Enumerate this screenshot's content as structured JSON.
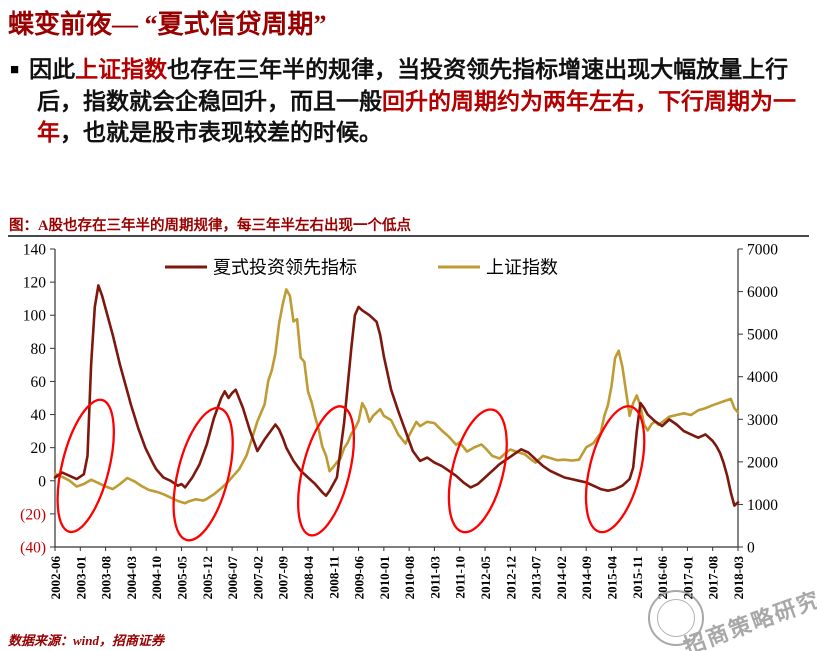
{
  "header": {
    "title": "蝶变前夜— “夏式信贷周期”"
  },
  "bullet": {
    "marker": "■",
    "segments": [
      {
        "text": "因此",
        "red": false
      },
      {
        "text": "上证指数",
        "red": true
      },
      {
        "text": "也存在三年半的规律，当投资领先指标增速出现大幅放量上行后，指数就会企稳回升，而且一般",
        "red": false
      },
      {
        "text": "回升的周期约为两年左右，下行周期为一年",
        "red": true
      },
      {
        "text": "，也就是股市表现较差的时候。",
        "red": false
      }
    ]
  },
  "figure": {
    "caption": "图：A股也存在三年半的周期规律，每三年半左右出现一个低点"
  },
  "footer": {
    "source": "数据来源：wind，招商证券"
  },
  "watermark": {
    "text": "招商策略研究"
  },
  "chart_data": {
    "type": "line",
    "title": "图：A股也存在三年半的周期规律，每三年半左右出现一个低点",
    "xlabel": "",
    "ylabel": "",
    "legend_position": "top",
    "grid": false,
    "x_start": "2002-06",
    "x_end": "2018-03",
    "total_months": 189,
    "months_per_tick": 7,
    "x_tick_labels": [
      "2002-06",
      "2003-01",
      "2003-08",
      "2004-03",
      "2004-10",
      "2005-05",
      "2005-12",
      "2006-07",
      "2007-02",
      "2007-09",
      "2008-04",
      "2008-11",
      "2009-06",
      "2010-01",
      "2010-08",
      "2011-03",
      "2011-10",
      "2012-05",
      "2012-12",
      "2013-07",
      "2014-02",
      "2014-09",
      "2015-04",
      "2015-11",
      "2016-06",
      "2017-01",
      "2017-08",
      "2018-03"
    ],
    "left_axis": {
      "min": -40,
      "max": 140,
      "ticks": [
        "140",
        "120",
        "100",
        "80",
        "60",
        "40",
        "20",
        "0",
        "(20)",
        "(40)"
      ]
    },
    "right_axis": {
      "min": 0,
      "max": 7000,
      "ticks": [
        "7000",
        "6000",
        "5000",
        "4000",
        "3000",
        "2000",
        "1000",
        "0"
      ]
    },
    "colors": {
      "negative_tick": "#c00000",
      "axis": "#333333"
    },
    "series": [
      {
        "name": "夏式投资领先指标",
        "axis": "left",
        "color": "#7e180e",
        "points": [
          [
            0,
            2
          ],
          [
            2,
            5
          ],
          [
            4,
            3
          ],
          [
            6,
            1
          ],
          [
            8,
            4
          ],
          [
            9,
            15
          ],
          [
            10,
            70
          ],
          [
            11,
            105
          ],
          [
            12,
            118
          ],
          [
            13,
            112
          ],
          [
            14,
            104
          ],
          [
            16,
            88
          ],
          [
            18,
            70
          ],
          [
            20,
            54
          ],
          [
            21,
            46
          ],
          [
            23,
            32
          ],
          [
            25,
            20
          ],
          [
            27,
            11
          ],
          [
            28,
            7
          ],
          [
            30,
            2
          ],
          [
            32,
            0
          ],
          [
            34,
            -3
          ],
          [
            35,
            -2
          ],
          [
            36,
            -4
          ],
          [
            38,
            2
          ],
          [
            40,
            10
          ],
          [
            42,
            22
          ],
          [
            44,
            38
          ],
          [
            46,
            50
          ],
          [
            47,
            54
          ],
          [
            48,
            50
          ],
          [
            49,
            53
          ],
          [
            50,
            55
          ],
          [
            52,
            44
          ],
          [
            54,
            30
          ],
          [
            56,
            18
          ],
          [
            58,
            25
          ],
          [
            60,
            31
          ],
          [
            61,
            34
          ],
          [
            62,
            31
          ],
          [
            63,
            26
          ],
          [
            64,
            20
          ],
          [
            66,
            12
          ],
          [
            68,
            6
          ],
          [
            70,
            2
          ],
          [
            72,
            -2
          ],
          [
            74,
            -7
          ],
          [
            75,
            -9
          ],
          [
            76,
            -6
          ],
          [
            78,
            2
          ],
          [
            80,
            35
          ],
          [
            82,
            80
          ],
          [
            83,
            100
          ],
          [
            84,
            105
          ],
          [
            85,
            103
          ],
          [
            87,
            100
          ],
          [
            89,
            96
          ],
          [
            90,
            88
          ],
          [
            91,
            75
          ],
          [
            93,
            55
          ],
          [
            95,
            42
          ],
          [
            97,
            30
          ],
          [
            99,
            18
          ],
          [
            101,
            12
          ],
          [
            103,
            14
          ],
          [
            105,
            11
          ],
          [
            107,
            9
          ],
          [
            109,
            6
          ],
          [
            111,
            3
          ],
          [
            113,
            -1
          ],
          [
            115,
            -4
          ],
          [
            117,
            -2
          ],
          [
            119,
            2
          ],
          [
            121,
            6
          ],
          [
            123,
            10
          ],
          [
            125,
            13
          ],
          [
            127,
            16
          ],
          [
            129,
            19
          ],
          [
            131,
            17
          ],
          [
            133,
            13
          ],
          [
            135,
            9
          ],
          [
            137,
            6
          ],
          [
            139,
            4
          ],
          [
            141,
            2
          ],
          [
            143,
            1
          ],
          [
            145,
            0
          ],
          [
            147,
            -1
          ],
          [
            149,
            -3
          ],
          [
            151,
            -5
          ],
          [
            153,
            -6
          ],
          [
            155,
            -5
          ],
          [
            157,
            -3
          ],
          [
            159,
            1
          ],
          [
            160,
            8
          ],
          [
            161,
            30
          ],
          [
            162,
            47
          ],
          [
            163,
            44
          ],
          [
            164,
            40
          ],
          [
            166,
            36
          ],
          [
            168,
            33
          ],
          [
            170,
            37
          ],
          [
            172,
            34
          ],
          [
            174,
            30
          ],
          [
            176,
            28
          ],
          [
            178,
            26
          ],
          [
            180,
            28
          ],
          [
            182,
            24
          ],
          [
            183,
            21
          ],
          [
            184,
            17
          ],
          [
            185,
            11
          ],
          [
            186,
            3
          ],
          [
            187,
            -7
          ],
          [
            188,
            -15
          ],
          [
            189,
            -13
          ]
        ]
      },
      {
        "name": "上证指数",
        "axis": "right",
        "color": "#bf9b33",
        "points": [
          [
            0,
            1720
          ],
          [
            2,
            1650
          ],
          [
            4,
            1560
          ],
          [
            6,
            1420
          ],
          [
            8,
            1480
          ],
          [
            10,
            1580
          ],
          [
            12,
            1500
          ],
          [
            14,
            1420
          ],
          [
            16,
            1360
          ],
          [
            18,
            1480
          ],
          [
            20,
            1620
          ],
          [
            22,
            1540
          ],
          [
            24,
            1430
          ],
          [
            26,
            1340
          ],
          [
            28,
            1300
          ],
          [
            30,
            1240
          ],
          [
            32,
            1160
          ],
          [
            34,
            1080
          ],
          [
            36,
            1030
          ],
          [
            37,
            1070
          ],
          [
            39,
            1120
          ],
          [
            41,
            1090
          ],
          [
            42,
            1130
          ],
          [
            44,
            1240
          ],
          [
            46,
            1380
          ],
          [
            48,
            1540
          ],
          [
            49,
            1640
          ],
          [
            51,
            1830
          ],
          [
            53,
            2150
          ],
          [
            55,
            2680
          ],
          [
            56,
            2950
          ],
          [
            58,
            3350
          ],
          [
            59,
            3900
          ],
          [
            60,
            4150
          ],
          [
            61,
            4550
          ],
          [
            62,
            5250
          ],
          [
            63,
            5700
          ],
          [
            64,
            6050
          ],
          [
            65,
            5900
          ],
          [
            66,
            5300
          ],
          [
            67,
            5350
          ],
          [
            68,
            4450
          ],
          [
            69,
            4350
          ],
          [
            70,
            3650
          ],
          [
            71,
            3400
          ],
          [
            72,
            3050
          ],
          [
            73,
            2750
          ],
          [
            74,
            2350
          ],
          [
            75,
            2150
          ],
          [
            76,
            1780
          ],
          [
            77,
            1880
          ],
          [
            78,
            1990
          ],
          [
            79,
            2080
          ],
          [
            80,
            2320
          ],
          [
            81,
            2450
          ],
          [
            82,
            2660
          ],
          [
            83,
            2780
          ],
          [
            84,
            2960
          ],
          [
            85,
            3380
          ],
          [
            86,
            3230
          ],
          [
            87,
            2940
          ],
          [
            88,
            3080
          ],
          [
            90,
            3240
          ],
          [
            91,
            3080
          ],
          [
            93,
            2980
          ],
          [
            95,
            2640
          ],
          [
            97,
            2430
          ],
          [
            98,
            2620
          ],
          [
            100,
            2940
          ],
          [
            101,
            2840
          ],
          [
            103,
            2940
          ],
          [
            105,
            2910
          ],
          [
            107,
            2740
          ],
          [
            109,
            2590
          ],
          [
            111,
            2400
          ],
          [
            112,
            2460
          ],
          [
            114,
            2240
          ],
          [
            116,
            2340
          ],
          [
            118,
            2410
          ],
          [
            119,
            2330
          ],
          [
            121,
            2140
          ],
          [
            123,
            2080
          ],
          [
            125,
            2230
          ],
          [
            126,
            2290
          ],
          [
            128,
            2230
          ],
          [
            130,
            2180
          ],
          [
            132,
            2040
          ],
          [
            133,
            1980
          ],
          [
            135,
            2140
          ],
          [
            137,
            2090
          ],
          [
            139,
            2040
          ],
          [
            141,
            2050
          ],
          [
            143,
            2030
          ],
          [
            145,
            2050
          ],
          [
            147,
            2340
          ],
          [
            149,
            2440
          ],
          [
            151,
            2680
          ],
          [
            152,
            3080
          ],
          [
            153,
            3330
          ],
          [
            154,
            3780
          ],
          [
            155,
            4440
          ],
          [
            156,
            4610
          ],
          [
            157,
            4230
          ],
          [
            158,
            3660
          ],
          [
            159,
            3080
          ],
          [
            160,
            3380
          ],
          [
            161,
            3560
          ],
          [
            162,
            3320
          ],
          [
            163,
            2880
          ],
          [
            164,
            2740
          ],
          [
            165,
            2880
          ],
          [
            166,
            2950
          ],
          [
            167,
            2870
          ],
          [
            168,
            2930
          ],
          [
            170,
            3060
          ],
          [
            172,
            3100
          ],
          [
            174,
            3140
          ],
          [
            176,
            3100
          ],
          [
            178,
            3210
          ],
          [
            180,
            3260
          ],
          [
            182,
            3330
          ],
          [
            184,
            3390
          ],
          [
            185,
            3420
          ],
          [
            186,
            3450
          ],
          [
            187,
            3480
          ],
          [
            188,
            3260
          ],
          [
            189,
            3160
          ]
        ]
      }
    ],
    "annotations": {
      "color": "#ff0000",
      "ellipses": [
        {
          "month": 8.5,
          "value": 9,
          "rx_months": 6.5,
          "ry_units": 41,
          "rotate_deg": 14
        },
        {
          "month": 41,
          "value": 4,
          "rx_months": 7,
          "ry_units": 41,
          "rotate_deg": 14
        },
        {
          "month": 75,
          "value": 6,
          "rx_months": 6.5,
          "ry_units": 40,
          "rotate_deg": 14
        },
        {
          "month": 117,
          "value": 6,
          "rx_months": 7,
          "ry_units": 38,
          "rotate_deg": 14
        },
        {
          "month": 155,
          "value": 7,
          "rx_months": 7,
          "ry_units": 39,
          "rotate_deg": 14
        }
      ]
    }
  }
}
